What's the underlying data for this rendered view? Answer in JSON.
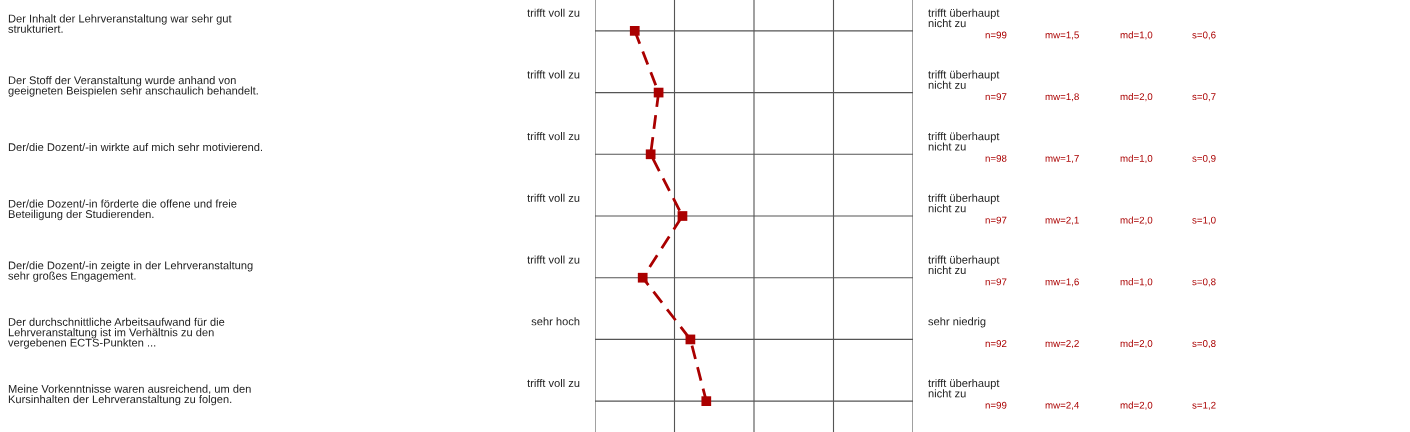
{
  "chart_data": {
    "type": "line",
    "orientation": "horizontal",
    "categories": [
      "Der Inhalt der Lehrveranstaltung war sehr gut\nstrukturiert.",
      "Der Stoff der Veranstaltung wurde anhand von\ngeeigneten Beispielen sehr anschaulich behandelt.",
      "Der/die Dozent/-in wirkte auf mich sehr motivierend.",
      "Der/die Dozent/-in förderte die offene und freie\nBeteiligung der Studierenden.",
      "Der/die Dozent/-in zeigte in der Lehrveranstaltung\nsehr großes Engagement.",
      "Der durchschnittliche Arbeitsaufwand für die\nLehrveranstaltung ist im Verhältnis zu den\nvergebenen ECTS-Punkten ...",
      "Meine Vorkenntnisse waren ausreichend, um den\nKursinhalten der Lehrveranstaltung zu folgen."
    ],
    "values": [
      1.5,
      1.8,
      1.7,
      2.1,
      1.6,
      2.2,
      2.4
    ],
    "value_labels": [
      "mw=1,5",
      "mw=1,8",
      "mw=1,7",
      "mw=2,1",
      "mw=1,6",
      "mw=2,2",
      "mw=2,4"
    ],
    "color": "#aa0000",
    "marker": "square",
    "line_style": "dashed",
    "xlim": [
      1,
      5
    ],
    "xticks": [
      {
        "value": 1,
        "label": null
      },
      {
        "value": 2,
        "label": null
      },
      {
        "value": 3,
        "label": null
      },
      {
        "value": 4,
        "label": null
      },
      {
        "value": 5,
        "label": null
      }
    ],
    "grid": "x",
    "annotations": [
      "trifft voll zu",
      "trifft überhaupt\nnicht zu",
      "n=99",
      "md=1,0",
      "s=0,6",
      "trifft voll zu",
      "trifft überhaupt\nnicht zu",
      "n=97",
      "md=2,0",
      "s=0,7",
      "trifft voll zu",
      "trifft überhaupt\nnicht zu",
      "n=98",
      "md=1,0",
      "s=0,9",
      "trifft voll zu",
      "trifft überhaupt\nnicht zu",
      "n=97",
      "md=2,0",
      "s=1,0",
      "trifft voll zu",
      "trifft überhaupt\nnicht zu",
      "n=97",
      "md=1,0",
      "s=0,8",
      "sehr hoch",
      "sehr niedrig",
      "n=92",
      "md=2,0",
      "s=0,8",
      "trifft voll zu",
      "trifft überhaupt\nnicht zu",
      "n=99",
      "md=2,0",
      "s=1,2"
    ]
  }
}
